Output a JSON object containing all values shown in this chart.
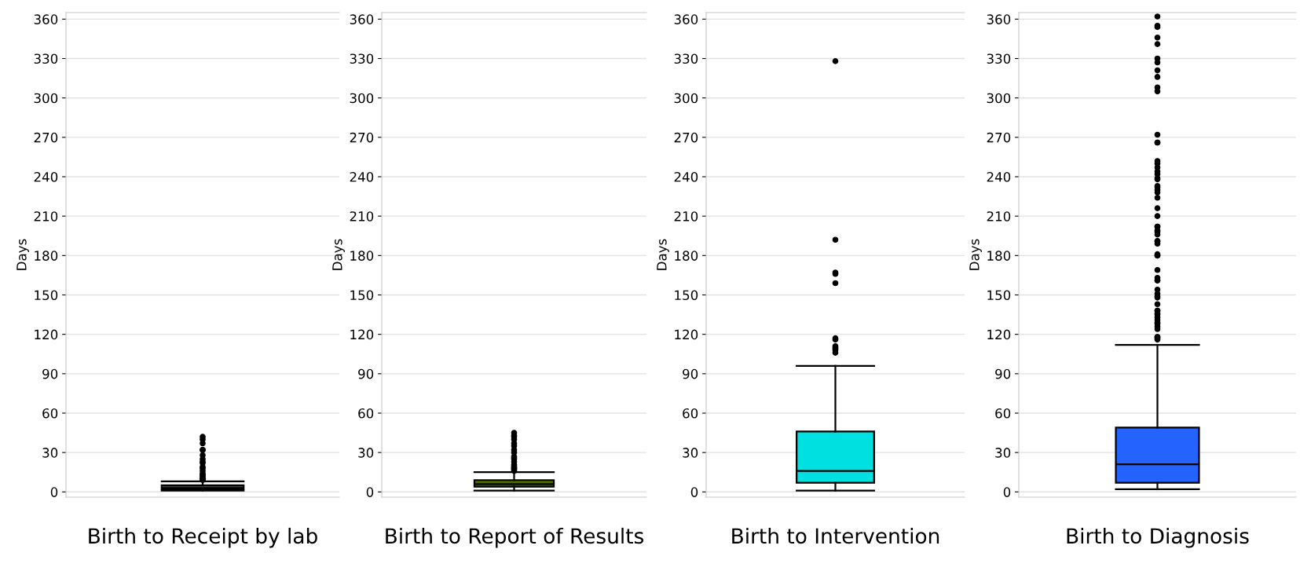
{
  "chart_data": [
    {
      "type": "box",
      "categories": [
        "Birth to Receipt by lab"
      ],
      "ylabel": "Days",
      "ylim": [
        -4,
        365
      ],
      "yticks": [
        0,
        30,
        60,
        90,
        120,
        150,
        180,
        210,
        240,
        270,
        300,
        330,
        360
      ],
      "grid": "y",
      "marker": "circle",
      "color": "#404040",
      "boxes": [
        {
          "low": 1,
          "q1": 2,
          "median": 3,
          "q3": 5,
          "high": 8,
          "outliers": [
            42,
            40,
            37,
            32,
            32,
            28,
            25,
            23,
            22,
            19,
            18,
            16,
            14,
            13,
            12,
            11,
            10,
            10,
            9
          ]
        }
      ]
    },
    {
      "type": "box",
      "categories": [
        "Birth to Report of Results"
      ],
      "ylabel": "Days",
      "ylim": [
        -4,
        365
      ],
      "yticks": [
        0,
        30,
        60,
        90,
        120,
        150,
        180,
        210,
        240,
        270,
        300,
        330,
        360
      ],
      "grid": "y",
      "marker": "circle",
      "color": "#4a6b00",
      "boxes": [
        {
          "low": 1,
          "q1": 4,
          "median": 6,
          "q3": 9,
          "high": 15,
          "outliers": [
            45,
            43,
            42,
            40,
            37,
            35,
            32,
            30,
            27,
            26,
            25,
            23,
            21,
            20,
            19,
            18,
            18,
            17,
            16
          ]
        }
      ]
    },
    {
      "type": "box",
      "categories": [
        "Birth to Intervention"
      ],
      "ylabel": "Days",
      "ylim": [
        -4,
        365
      ],
      "yticks": [
        0,
        30,
        60,
        90,
        120,
        150,
        180,
        210,
        240,
        270,
        300,
        330,
        360
      ],
      "grid": "y",
      "marker": "circle",
      "color": "#00e0e0",
      "boxes": [
        {
          "low": 1,
          "q1": 7,
          "median": 16,
          "q3": 46,
          "high": 96,
          "outliers": [
            328,
            192,
            167,
            166,
            159,
            117,
            116,
            111,
            110,
            109,
            108,
            106
          ]
        }
      ]
    },
    {
      "type": "box",
      "categories": [
        "Birth to Diagnosis"
      ],
      "ylabel": "Days",
      "ylim": [
        -4,
        365
      ],
      "yticks": [
        0,
        30,
        60,
        90,
        120,
        150,
        180,
        210,
        240,
        270,
        300,
        330,
        360
      ],
      "grid": "y",
      "marker": "circle",
      "color": "#2563ff",
      "boxes": [
        {
          "low": 2,
          "q1": 7,
          "median": 21,
          "q3": 49,
          "high": 112,
          "outliers": [
            362,
            355,
            354,
            346,
            341,
            330,
            327,
            321,
            316,
            308,
            305,
            272,
            266,
            266,
            252,
            250,
            247,
            244,
            242,
            239,
            238,
            233,
            232,
            230,
            228,
            224,
            216,
            210,
            202,
            202,
            199,
            198,
            196,
            191,
            191,
            189,
            181,
            180,
            180,
            169,
            163,
            161,
            161,
            154,
            151,
            149,
            148,
            143,
            138,
            138,
            136,
            135,
            133,
            131,
            129,
            128,
            126,
            124,
            118,
            118,
            117,
            116
          ]
        }
      ]
    }
  ]
}
